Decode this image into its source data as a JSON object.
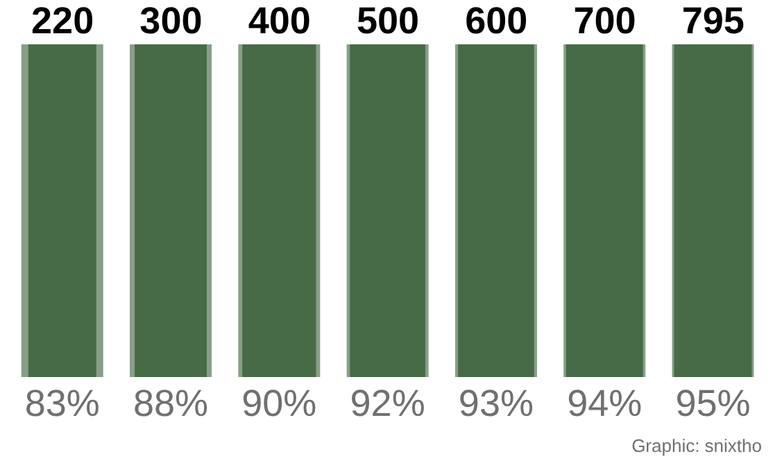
{
  "chart_data": {
    "type": "other",
    "categories": [
      "220",
      "300",
      "400",
      "500",
      "600",
      "700",
      "795"
    ],
    "values": [
      83,
      88,
      90,
      92,
      93,
      94,
      95
    ],
    "value_labels": [
      "83%",
      "88%",
      "90%",
      "92%",
      "93%",
      "94%",
      "95%"
    ],
    "color": "#476b47",
    "annotations": [
      "Graphic: snixtho"
    ]
  }
}
